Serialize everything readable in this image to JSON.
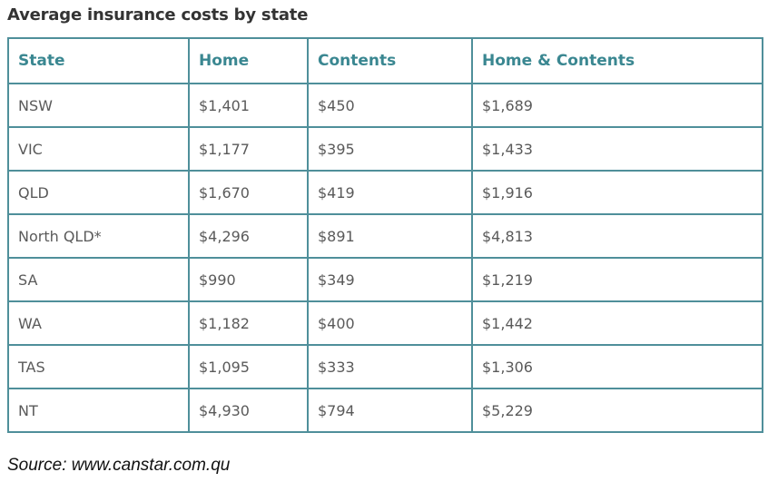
{
  "title": "Average insurance costs by state",
  "table": {
    "headers": [
      "State",
      "Home",
      "Contents",
      "Home & Contents"
    ],
    "rows": [
      [
        "NSW",
        "$1,401",
        "$450",
        "$1,689"
      ],
      [
        "VIC",
        "$1,177",
        "$395",
        "$1,433"
      ],
      [
        "QLD",
        "$1,670",
        "$419",
        "$1,916"
      ],
      [
        "North QLD*",
        "$4,296",
        "$891",
        "$4,813"
      ],
      [
        "SA",
        "$990",
        "$349",
        "$1,219"
      ],
      [
        "WA",
        "$1,182",
        "$400",
        "$1,442"
      ],
      [
        "TAS",
        "$1,095",
        "$333",
        "$1,306"
      ],
      [
        "NT",
        "$4,930",
        "$794",
        "$5,229"
      ]
    ]
  },
  "source": "Source: www.canstar.com.qu",
  "colors": {
    "border": "#4f8f9a",
    "header_text": "#3a8791",
    "cell_text": "#5a5a5a",
    "title_text": "#333333"
  }
}
